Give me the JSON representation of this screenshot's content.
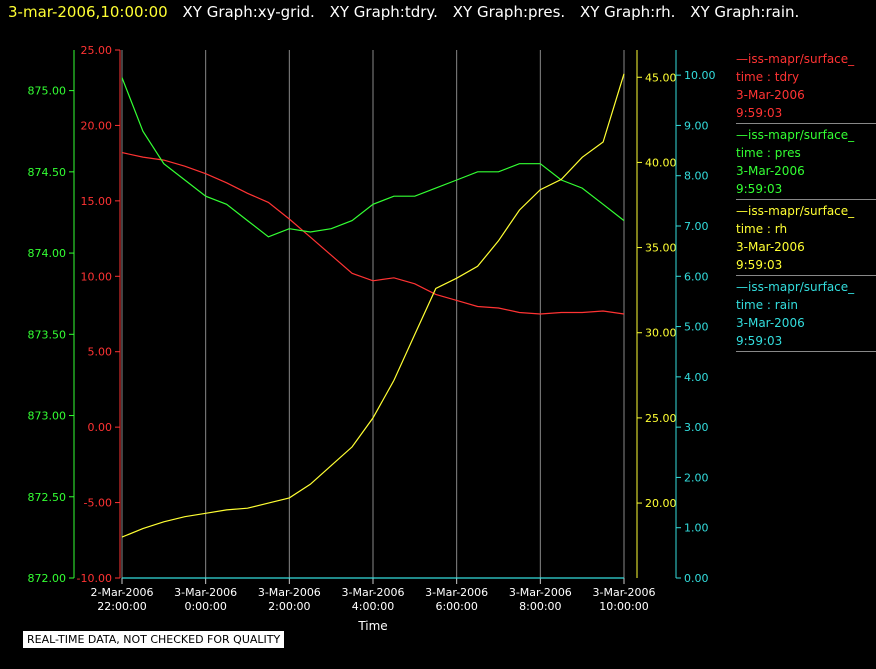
{
  "header": {
    "timestamp": "3-mar-2006,10:00:00",
    "graphs": [
      "XY Graph:xy-grid.",
      "XY Graph:tdry.",
      "XY Graph:pres.",
      "XY Graph:rh.",
      "XY Graph:rain."
    ]
  },
  "legend": [
    {
      "name": "—iss-mapr/surface_",
      "field": "time : tdry",
      "date": "3-Mar-2006",
      "time": "9:59:03",
      "color": "#ff3333"
    },
    {
      "name": "—iss-mapr/surface_",
      "field": "time : pres",
      "date": "3-Mar-2006",
      "time": "9:59:03",
      "color": "#33ff33"
    },
    {
      "name": "—iss-mapr/surface_",
      "field": "time : rh",
      "date": "3-Mar-2006",
      "time": "9:59:03",
      "color": "#ffff33"
    },
    {
      "name": "—iss-mapr/surface_",
      "field": "time : rain",
      "date": "3-Mar-2006",
      "time": "9:59:03",
      "color": "#33dddd"
    }
  ],
  "quality_note": "REAL-TIME DATA, NOT CHECKED FOR QUALITY",
  "chart_data": {
    "type": "line",
    "xlabel": "Time",
    "x_ticks": [
      [
        "2-Mar-2006",
        "22:00:00"
      ],
      [
        "3-Mar-2006",
        "0:00:00"
      ],
      [
        "3-Mar-2006",
        "2:00:00"
      ],
      [
        "3-Mar-2006",
        "4:00:00"
      ],
      [
        "3-Mar-2006",
        "6:00:00"
      ],
      [
        "3-Mar-2006",
        "8:00:00"
      ],
      [
        "3-Mar-2006",
        "10:00:00"
      ]
    ],
    "x_range_hours": [
      0,
      12
    ],
    "grid": "vertical",
    "axes": {
      "pres": {
        "color": "#33ff33",
        "range": [
          872.0,
          875.25
        ],
        "ticks": [
          "872.00",
          "872.50",
          "873.00",
          "873.50",
          "874.00",
          "874.50",
          "875.00"
        ]
      },
      "tdry": {
        "color": "#ff3333",
        "range": [
          -10.0,
          25.0
        ],
        "ticks": [
          "-10.00",
          "-5.00",
          "0.00",
          "5.00",
          "10.00",
          "15.00",
          "20.00",
          "25.00"
        ]
      },
      "rh": {
        "color": "#ffff33",
        "range": [
          15.6,
          46.6
        ],
        "ticks": [
          "20.00",
          "25.00",
          "30.00",
          "35.00",
          "40.00",
          "45.00"
        ]
      },
      "rain": {
        "color": "#33dddd",
        "range": [
          0.0,
          10.5
        ],
        "ticks": [
          "0.00",
          "1.00",
          "2.00",
          "3.00",
          "4.00",
          "5.00",
          "6.00",
          "7.00",
          "8.00",
          "9.00",
          "10.00"
        ]
      }
    },
    "series": [
      {
        "name": "tdry",
        "axis": "tdry",
        "color": "#ff3333",
        "x": [
          0,
          0.5,
          1,
          1.5,
          2,
          2.5,
          3,
          3.5,
          4,
          4.5,
          5,
          5.5,
          6,
          6.5,
          7,
          7.5,
          8,
          8.5,
          9,
          9.5,
          10,
          10.5,
          11,
          11.5,
          12
        ],
        "y": [
          18.2,
          17.9,
          17.7,
          17.3,
          16.8,
          16.2,
          15.5,
          14.9,
          13.8,
          12.6,
          11.4,
          10.2,
          9.7,
          9.9,
          9.5,
          8.8,
          8.4,
          8.0,
          7.9,
          7.6,
          7.5,
          7.6,
          7.6,
          7.7,
          7.5
        ]
      },
      {
        "name": "pres",
        "axis": "pres",
        "color": "#33ff33",
        "x": [
          0,
          0.5,
          1,
          1.5,
          2,
          2.5,
          3,
          3.5,
          4,
          4.5,
          5,
          5.5,
          6,
          6.5,
          7,
          7.5,
          8,
          8.5,
          9,
          9.5,
          10,
          10.5,
          11,
          11.5,
          12
        ],
        "y": [
          875.08,
          874.75,
          874.55,
          874.45,
          874.35,
          874.3,
          874.2,
          874.1,
          874.15,
          874.13,
          874.15,
          874.2,
          874.3,
          874.35,
          874.35,
          874.4,
          874.45,
          874.5,
          874.5,
          874.55,
          874.55,
          874.45,
          874.4,
          874.3,
          874.2
        ]
      },
      {
        "name": "rh",
        "axis": "rh",
        "color": "#ffff33",
        "x": [
          0,
          0.5,
          1,
          1.5,
          2,
          2.5,
          3,
          3.5,
          4,
          4.5,
          5,
          5.5,
          6,
          6.5,
          7,
          7.5,
          8,
          8.5,
          9,
          9.5,
          10,
          10.5,
          11,
          11.5,
          12
        ],
        "y": [
          18.0,
          18.5,
          18.9,
          19.2,
          19.4,
          19.6,
          19.7,
          20.0,
          20.3,
          21.1,
          22.2,
          23.3,
          25.0,
          27.2,
          29.9,
          32.6,
          33.2,
          33.9,
          35.4,
          37.2,
          38.4,
          39.0,
          40.3,
          41.2,
          45.2
        ]
      },
      {
        "name": "rain",
        "axis": "rain",
        "color": "#33dddd",
        "x": [
          0,
          12
        ],
        "y": [
          0,
          0
        ]
      }
    ]
  }
}
